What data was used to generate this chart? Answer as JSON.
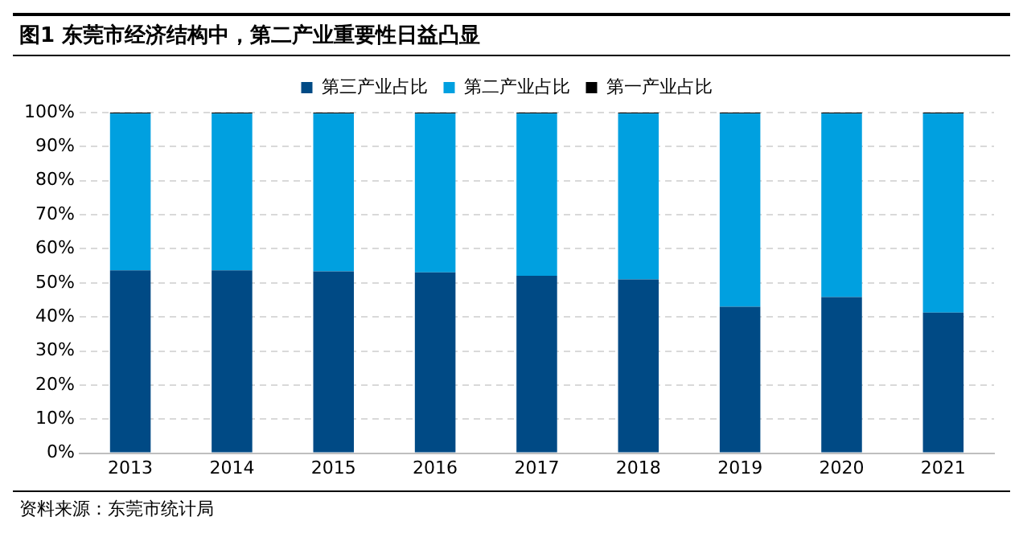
{
  "chart_data": {
    "type": "bar",
    "title": "图1  东莞市经济结构中，第二产业重要性日益凸显",
    "annotations": [
      "资料来源：东莞市统计局"
    ],
    "categories": [
      "2013",
      "2014",
      "2015",
      "2016",
      "2017",
      "2018",
      "2019",
      "2020",
      "2021"
    ],
    "series": [
      {
        "name": "第三产业占比",
        "color": "#004a85",
        "values": [
          53.7,
          53.7,
          53.4,
          53.1,
          52.1,
          51.0,
          43.0,
          45.8,
          41.3
        ]
      },
      {
        "name": "第二产业占比",
        "color": "#00a0e0",
        "values": [
          46.0,
          46.0,
          46.3,
          46.6,
          47.6,
          48.7,
          56.7,
          53.9,
          58.4
        ]
      },
      {
        "name": "第一产业占比",
        "color": "#000000",
        "values": [
          0.3,
          0.3,
          0.3,
          0.3,
          0.3,
          0.3,
          0.3,
          0.3,
          0.3
        ]
      }
    ],
    "stacked": true,
    "ylim": [
      0,
      100
    ],
    "yticks": [
      {
        "value": 0,
        "label": "0%"
      },
      {
        "value": 10,
        "label": "10%"
      },
      {
        "value": 20,
        "label": "20%"
      },
      {
        "value": 30,
        "label": "30%"
      },
      {
        "value": 40,
        "label": "40%"
      },
      {
        "value": 50,
        "label": "50%"
      },
      {
        "value": 60,
        "label": "60%"
      },
      {
        "value": 70,
        "label": "70%"
      },
      {
        "value": 80,
        "label": "80%"
      },
      {
        "value": 90,
        "label": "90%"
      },
      {
        "value": 100,
        "label": "100%"
      }
    ],
    "grid": "y",
    "legend": "top"
  }
}
